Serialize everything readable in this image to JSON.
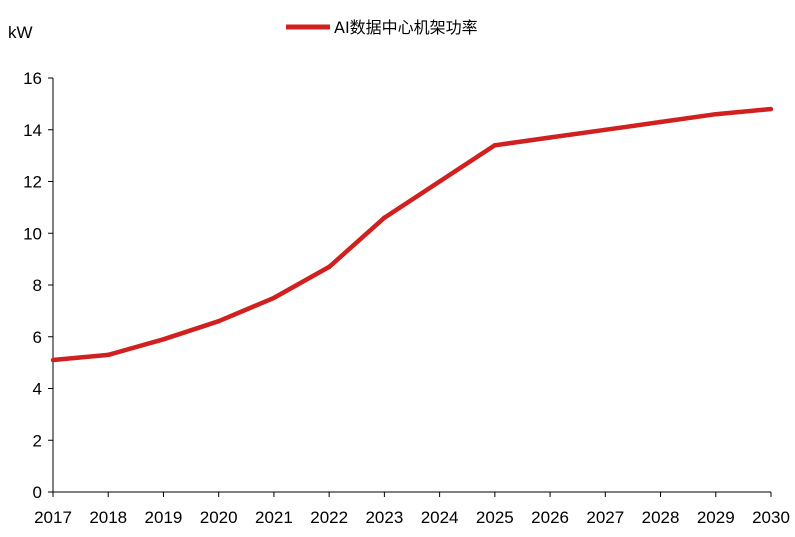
{
  "chart_data": {
    "type": "line",
    "title": "",
    "ylabel": "kW",
    "xlabel": "",
    "categories": [
      "2017",
      "2018",
      "2019",
      "2020",
      "2021",
      "2022",
      "2023",
      "2024",
      "2025",
      "2026",
      "2027",
      "2028",
      "2029",
      "2030"
    ],
    "series": [
      {
        "name": "AI数据中心机架功率",
        "color": "#d0201f",
        "values": [
          5.1,
          5.3,
          5.9,
          6.6,
          7.5,
          8.7,
          10.6,
          12.0,
          13.4,
          13.7,
          14.0,
          14.3,
          14.6,
          14.8
        ]
      }
    ],
    "ylim": [
      0,
      16
    ],
    "yticks": [
      "0",
      "2",
      "4",
      "6",
      "8",
      "10",
      "12",
      "14",
      "16"
    ],
    "grid": false,
    "legend_position": "top-center"
  }
}
